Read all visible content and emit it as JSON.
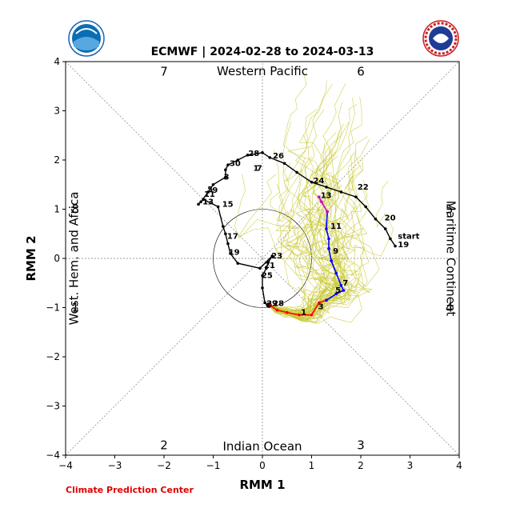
{
  "chart_data": {
    "type": "line",
    "title": "ECMWF | 2024-02-28 to 2024-03-13",
    "xlabel": "RMM 1",
    "ylabel": "RMM 2",
    "xlim": [
      -4,
      4
    ],
    "ylim": [
      -4,
      4
    ],
    "xticks": [
      "−4",
      "−3",
      "−2",
      "−1",
      "0",
      "1",
      "2",
      "3",
      "4"
    ],
    "yticks": [
      "−4",
      "−3",
      "−2",
      "−1",
      "0",
      "1",
      "2",
      "3",
      "4"
    ],
    "regions": {
      "top": "Western Pacific",
      "bottom": "Indian Ocean",
      "left": "West. Hem. and Africa",
      "right": "Maritime Continent"
    },
    "phases": [
      {
        "label": "1",
        "x": -3.8,
        "y": -1.0
      },
      {
        "label": "2",
        "x": -2.0,
        "y": -3.8
      },
      {
        "label": "3",
        "x": 2.0,
        "y": -3.8
      },
      {
        "label": "4",
        "x": 3.8,
        "y": -1.0
      },
      {
        "label": "5",
        "x": 3.8,
        "y": 1.0
      },
      {
        "label": "6",
        "x": 2.0,
        "y": 3.8
      },
      {
        "label": "7",
        "x": -2.0,
        "y": 3.8
      },
      {
        "label": "8",
        "x": -3.8,
        "y": 1.0
      }
    ],
    "credit": "Climate Prediction Center",
    "logos": {
      "left": "NOAA",
      "right": "NATIONAL WEATHER SERVICE"
    },
    "colors": {
      "observed": "#000000",
      "forecast_week1": "#ff0000",
      "forecast_week2": "#0000ff",
      "forecast_week3": "#cc00cc",
      "ensemble": "#c8c832",
      "guide": "#808080"
    },
    "observed": {
      "points": [
        [
          2.7,
          0.25
        ],
        [
          2.6,
          0.4
        ],
        [
          2.5,
          0.6
        ],
        [
          2.3,
          0.8
        ],
        [
          2.1,
          1.05
        ],
        [
          1.9,
          1.25
        ],
        [
          1.6,
          1.35
        ],
        [
          1.3,
          1.45
        ],
        [
          1.0,
          1.55
        ],
        [
          0.7,
          1.75
        ],
        [
          0.45,
          1.93
        ],
        [
          0.15,
          2.05
        ],
        [
          0.0,
          2.15
        ],
        [
          -0.3,
          2.1
        ],
        [
          -0.5,
          2.0
        ],
        [
          -0.7,
          1.9
        ],
        [
          -0.75,
          1.8
        ],
        [
          -0.75,
          1.65
        ],
        [
          -1.0,
          1.5
        ],
        [
          -1.1,
          1.35
        ],
        [
          -1.25,
          1.15
        ],
        [
          -1.3,
          1.1
        ],
        [
          -1.2,
          1.2
        ],
        [
          -0.9,
          1.05
        ],
        [
          -0.8,
          0.65
        ],
        [
          -0.75,
          0.5
        ],
        [
          -0.7,
          0.3
        ],
        [
          -0.65,
          0.1
        ],
        [
          -0.5,
          -0.1
        ],
        [
          -0.05,
          -0.2
        ],
        [
          0.2,
          0.05
        ],
        [
          0.12,
          -0.08
        ],
        [
          0.08,
          -0.2
        ],
        [
          0.0,
          -0.35
        ],
        [
          0.0,
          -0.6
        ],
        [
          0.05,
          -0.9
        ],
        [
          0.1,
          -0.95
        ],
        [
          0.15,
          -0.95
        ]
      ],
      "labels": [
        {
          "text": "start",
          "x": 2.72,
          "y": 0.45
        },
        {
          "text": "19",
          "x": 2.72,
          "y": 0.28
        },
        {
          "text": "20",
          "x": 2.45,
          "y": 0.82
        },
        {
          "text": "22",
          "x": 1.9,
          "y": 1.45
        },
        {
          "text": "24",
          "x": 1.0,
          "y": 1.58
        },
        {
          "text": "26",
          "x": 0.18,
          "y": 2.08
        },
        {
          "text": "28",
          "x": -0.32,
          "y": 2.13
        },
        {
          "text": "30",
          "x": -0.7,
          "y": 1.93
        },
        {
          "text": "1",
          "x": -0.22,
          "y": 1.83
        },
        {
          "text": "3",
          "x": -0.82,
          "y": 1.65
        },
        {
          "text": "5",
          "x": -1.15,
          "y": 1.4
        },
        {
          "text": "7",
          "x": -0.15,
          "y": 1.83
        },
        {
          "text": "9",
          "x": -1.05,
          "y": 1.38
        },
        {
          "text": "11",
          "x": -1.22,
          "y": 1.3
        },
        {
          "text": "13",
          "x": -1.25,
          "y": 1.15
        },
        {
          "text": "15",
          "x": -0.85,
          "y": 1.1
        },
        {
          "text": "17",
          "x": -0.75,
          "y": 0.45
        },
        {
          "text": "19",
          "x": -0.72,
          "y": 0.12
        },
        {
          "text": "21",
          "x": 0.0,
          "y": -0.15
        },
        {
          "text": "23",
          "x": 0.15,
          "y": 0.05
        },
        {
          "text": "25",
          "x": -0.05,
          "y": -0.35
        }
      ]
    },
    "forecast": {
      "week1": [
        [
          0.15,
          -0.95
        ],
        [
          0.3,
          -1.05
        ],
        [
          0.5,
          -1.1
        ],
        [
          0.75,
          -1.15
        ],
        [
          1.0,
          -1.15
        ],
        [
          1.15,
          -0.9
        ],
        [
          1.3,
          -0.85
        ]
      ],
      "week2": [
        [
          1.3,
          -0.85
        ],
        [
          1.5,
          -0.72
        ],
        [
          1.65,
          -0.65
        ],
        [
          1.6,
          -0.55
        ],
        [
          1.5,
          -0.3
        ],
        [
          1.4,
          -0.05
        ],
        [
          1.35,
          0.2
        ],
        [
          1.35,
          0.4
        ],
        [
          1.3,
          0.6
        ],
        [
          1.32,
          0.95
        ]
      ],
      "week3": [
        [
          1.32,
          0.95
        ],
        [
          1.2,
          1.15
        ],
        [
          1.15,
          1.25
        ]
      ],
      "labels": [
        {
          "text": "28",
          "x": 0.18,
          "y": -0.92
        },
        {
          "text": "29",
          "x": 0.05,
          "y": -0.92
        },
        {
          "text": "1",
          "x": 0.75,
          "y": -1.1
        },
        {
          "text": "3",
          "x": 1.1,
          "y": -0.98
        },
        {
          "text": "5",
          "x": 1.45,
          "y": -0.65
        },
        {
          "text": "7",
          "x": 1.6,
          "y": -0.5
        },
        {
          "text": "9",
          "x": 1.4,
          "y": 0.15
        },
        {
          "text": "11",
          "x": 1.35,
          "y": 0.65
        },
        {
          "text": "13",
          "x": 1.15,
          "y": 1.28
        }
      ]
    }
  }
}
